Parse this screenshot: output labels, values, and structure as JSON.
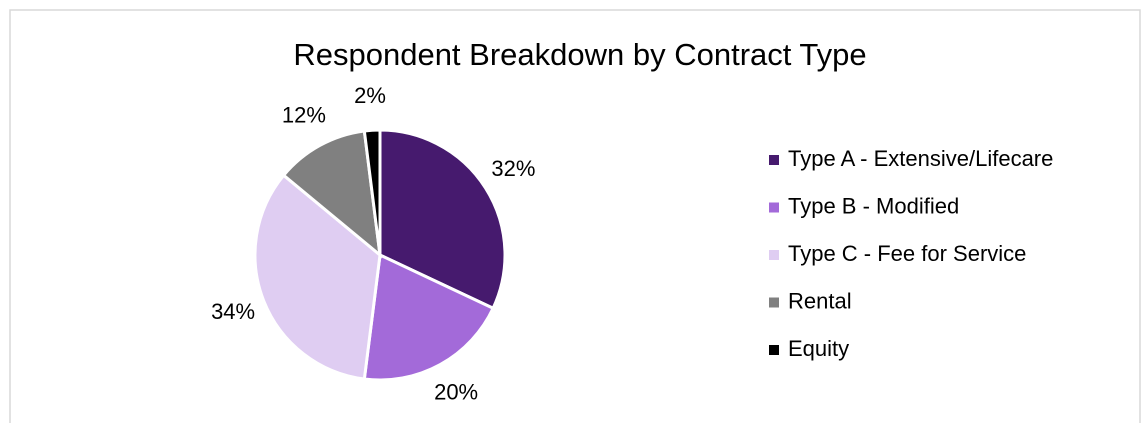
{
  "chart_data": {
    "type": "pie",
    "title": "Respondent Breakdown by Contract Type",
    "categories": [
      "Type A - Extensive/Lifecare",
      "Type B - Modified",
      "Type C - Fee for Service",
      "Rental",
      "Equity"
    ],
    "values": [
      32,
      20,
      34,
      12,
      2
    ],
    "value_labels": [
      "32%",
      "20%",
      "34%",
      "12%",
      "2%"
    ],
    "colors": [
      "#461a6e",
      "#a36ad9",
      "#dfcdf2",
      "#808080",
      "#000000"
    ],
    "legend": "right"
  }
}
